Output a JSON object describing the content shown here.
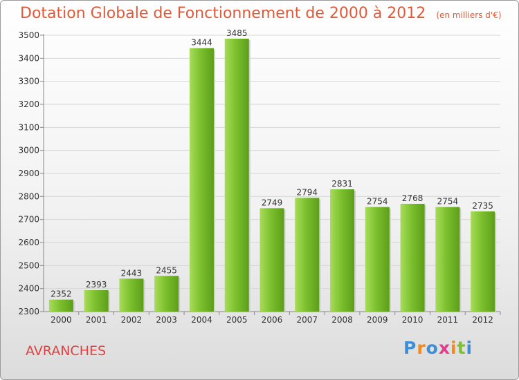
{
  "chart_data": {
    "type": "bar",
    "title": "Dotation Globale de Fonctionnement de 2000 à 2012",
    "unit_note": "(en milliers d'€)",
    "categories": [
      "2000",
      "2001",
      "2002",
      "2003",
      "2004",
      "2005",
      "2006",
      "2007",
      "2008",
      "2009",
      "2010",
      "2011",
      "2012"
    ],
    "values": [
      2352,
      2393,
      2443,
      2455,
      3444,
      3485,
      2749,
      2794,
      2831,
      2754,
      2768,
      2754,
      2735
    ],
    "ylim": [
      2300,
      3500
    ],
    "yticks": [
      2300,
      2400,
      2500,
      2600,
      2700,
      2800,
      2900,
      3000,
      3100,
      3200,
      3300,
      3400,
      3500
    ],
    "grid": true,
    "bar_color": "#7cc02e",
    "bar_color_light": "#a8dc5a",
    "bar_color_dark": "#5d9e1a",
    "title_color": "#e05a3a"
  },
  "footer": {
    "city": "AVRANCHES",
    "logo_text": "Proxiti",
    "logo_colors": [
      "#3a8fd8",
      "#f08a1c",
      "#3a8fd8",
      "#e23c8c",
      "#f08a1c",
      "#7cc02e",
      "#3a8fd8"
    ]
  }
}
